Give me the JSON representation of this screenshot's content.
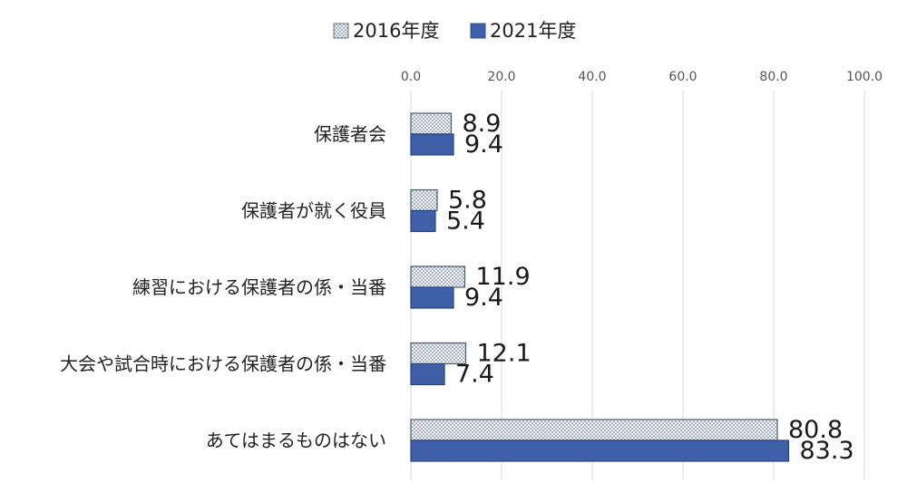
{
  "chart_data": {
    "type": "bar",
    "orientation": "horizontal",
    "categories": [
      "保護者会",
      "保護者が就く役員",
      "練習における保護者の係・当番",
      "大会や試合時における保護者の係・当番",
      "あてはまるものはない"
    ],
    "series": [
      {
        "name": "2016年度",
        "values": [
          8.9,
          5.8,
          11.9,
          12.1,
          80.8
        ],
        "value_labels": [
          "8.9",
          "5.8",
          "11.9",
          "12.1",
          "80.8"
        ],
        "color": "#dfe6ee",
        "pattern": "dotted"
      },
      {
        "name": "2021年度",
        "values": [
          9.4,
          5.4,
          9.4,
          7.4,
          83.3
        ],
        "value_labels": [
          "9.4",
          "5.4",
          "9.4",
          "7.4",
          "83.3"
        ],
        "color": "#3f5fa8",
        "pattern": "solid"
      }
    ],
    "xlim": [
      0,
      100
    ],
    "xticks": [
      "0.0",
      "20.0",
      "40.0",
      "60.0",
      "80.0",
      "100.0"
    ],
    "x_axis_position": "top",
    "legend_position": "top-center",
    "grid": true,
    "title": "",
    "xlabel": "",
    "ylabel": ""
  }
}
